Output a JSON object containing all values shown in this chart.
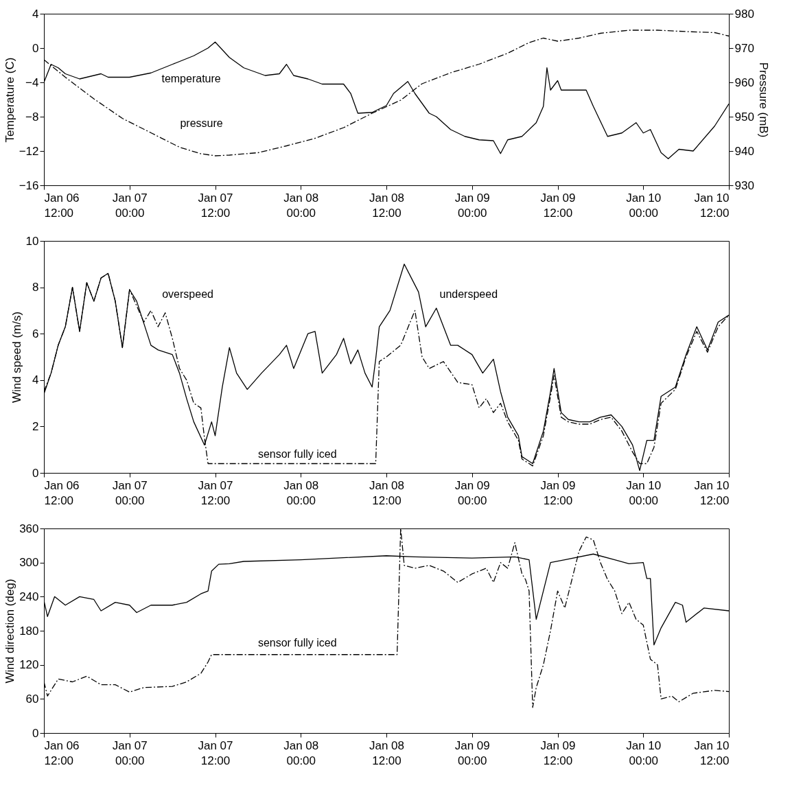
{
  "chart_data": [
    {
      "type": "line",
      "ylabel": "Temperature (C)",
      "y2label": "Pressure (mB)",
      "xlim": [
        "--01-06T12:00",
        "--01-10T12:00"
      ],
      "ylim": [
        -16,
        4
      ],
      "yticks": [
        -16,
        -12,
        -8,
        -4,
        0,
        4
      ],
      "y2lim": [
        930,
        980
      ],
      "y2ticks": [
        930,
        940,
        950,
        960,
        970,
        980
      ],
      "xticks": [
        {
          "value": "--01-06T12:00",
          "label": "Jan 06\n12:00"
        },
        {
          "value": "--01-07T00:00",
          "label": "Jan 07\n00:00"
        },
        {
          "value": "--01-07T12:00",
          "label": "Jan 07\n12:00"
        },
        {
          "value": "--01-08T00:00",
          "label": "Jan 08\n00:00"
        },
        {
          "value": "--01-08T12:00",
          "label": "Jan 08\n12:00"
        },
        {
          "value": "--01-09T00:00",
          "label": "Jan 09\n00:00"
        },
        {
          "value": "--01-09T12:00",
          "label": "Jan 09\n12:00"
        },
        {
          "value": "--01-10T00:00",
          "label": "Jan 10\n00:00"
        },
        {
          "value": "--01-10T12:00",
          "label": "Jan 10\n12:00"
        }
      ],
      "annotations": [
        "temperature",
        "pressure"
      ],
      "series": [
        {
          "color": "#000000",
          "line_style": "solid",
          "x": [
            "--01-06T12:00",
            "--01-06T13:00",
            "--01-06T14:00",
            "--01-06T15:00",
            "--01-06T17:00",
            "--01-06T20:00",
            "--01-06T21:00",
            "--01-07T00:00",
            "--01-07T03:00",
            "--01-07T06:00",
            "--01-07T09:00",
            "--01-07T11:00",
            "--01-07T12:00",
            "--01-07T14:00",
            "--01-07T16:00",
            "--01-07T19:00",
            "--01-07T21:00",
            "--01-07T22:00",
            "--01-07T23:00",
            "--01-08T01:00",
            "--01-08T03:00",
            "--01-08T06:00",
            "--01-08T07:00",
            "--01-08T08:00",
            "--01-08T10:00",
            "--01-08T12:00",
            "--01-08T13:00",
            "--01-08T15:00",
            "--01-08T16:00",
            "--01-08T18:00",
            "--01-08T19:00",
            "--01-08T21:00",
            "--01-08T23:00",
            "--01-09T01:00",
            "--01-09T03:00",
            "--01-09T04:00",
            "--01-09T05:00",
            "--01-09T07:00",
            "--01-09T09:00",
            "--01-09T10:00",
            "--01-09T10:30",
            "--01-09T11:00",
            "--01-09T12:00",
            "--01-09T12:30",
            "--01-09T16:00",
            "--01-09T17:00",
            "--01-09T19:00",
            "--01-09T21:00",
            "--01-09T23:00",
            "--01-10T00:00",
            "--01-10T01:00",
            "--01-10T02:30",
            "--01-10T03:30",
            "--01-10T05:00",
            "--01-10T07:00",
            "--01-10T10:00",
            "--01-10T12:00"
          ],
          "values": [
            -4,
            -1.9,
            -2.3,
            -3.0,
            -3.6,
            -3.0,
            -3.4,
            -3.4,
            -2.9,
            -1.9,
            -0.9,
            0.0,
            0.7,
            -1.1,
            -2.3,
            -3.2,
            -3.0,
            -1.9,
            -3.2,
            -3.6,
            -4.2,
            -4.2,
            -5.3,
            -7.6,
            -7.5,
            -6.7,
            -5.3,
            -3.9,
            -5.3,
            -7.6,
            -8.0,
            -9.5,
            -10.3,
            -10.7,
            -10.8,
            -12.3,
            -10.7,
            -10.3,
            -8.7,
            -6.8,
            -2.3,
            -4.9,
            -3.8,
            -4.9,
            -4.9,
            -6.8,
            -10.3,
            -9.9,
            -8.7,
            -9.9,
            -9.5,
            -12.2,
            -12.9,
            -11.8,
            -12.0,
            -9.1,
            -6.5
          ]
        },
        {
          "color": "#000000",
          "line_style": "dashed",
          "axis": "y2",
          "x": [
            "--01-06T12:00",
            "--01-06T15:00",
            "--01-06T19:00",
            "--01-06T23:00",
            "--01-07T03:00",
            "--01-07T07:00",
            "--01-07T10:00",
            "--01-07T12:00",
            "--01-07T14:00",
            "--01-07T18:00",
            "--01-07T22:00",
            "--01-08T02:00",
            "--01-08T06:00",
            "--01-08T10:00",
            "--01-08T14:00",
            "--01-08T17:00",
            "--01-08T21:00",
            "--01-09T01:00",
            "--01-09T05:00",
            "--01-09T08:00",
            "--01-09T10:00",
            "--01-09T12:00",
            "--01-09T15:00",
            "--01-09T18:00",
            "--01-09T22:00",
            "--01-10T02:00",
            "--01-10T06:00",
            "--01-10T10:00",
            "--01-10T12:00"
          ],
          "values": [
            966.6,
            961.5,
            955.2,
            949.5,
            945.3,
            941.1,
            939.2,
            938.6,
            938.8,
            939.5,
            941.5,
            943.7,
            946.8,
            951,
            954.8,
            959.6,
            962.8,
            965.3,
            968.5,
            971.6,
            972.9,
            972,
            972.9,
            974.3,
            975.2,
            975.2,
            974.8,
            974.5,
            973.5
          ]
        }
      ]
    },
    {
      "type": "line",
      "ylabel": "Wind speed (m/s)",
      "xlim": [
        "--01-06T12:00",
        "--01-10T12:00"
      ],
      "ylim": [
        0,
        10
      ],
      "yticks": [
        0,
        2,
        4,
        6,
        8,
        10
      ],
      "xticks": [
        {
          "value": "--01-06T12:00",
          "label": "Jan 06\n12:00"
        },
        {
          "value": "--01-07T00:00",
          "label": "Jan 07\n00:00"
        },
        {
          "value": "--01-07T12:00",
          "label": "Jan 07\n12:00"
        },
        {
          "value": "--01-08T00:00",
          "label": "Jan 08\n00:00"
        },
        {
          "value": "--01-08T12:00",
          "label": "Jan 08\n12:00"
        },
        {
          "value": "--01-09T00:00",
          "label": "Jan 09\n00:00"
        },
        {
          "value": "--01-09T12:00",
          "label": "Jan 09\n12:00"
        },
        {
          "value": "--01-10T00:00",
          "label": "Jan 10\n00:00"
        },
        {
          "value": "--01-10T12:00",
          "label": "Jan 10\n12:00"
        }
      ],
      "annotations": [
        "overspeed",
        "underspeed",
        "sensor fully iced"
      ],
      "series": [
        {
          "color": "#000000",
          "line_style": "solid",
          "x": [
            "--01-06T12:00",
            "--01-06T13:00",
            "--01-06T14:00",
            "--01-06T15:00",
            "--01-06T16:00",
            "--01-06T17:00",
            "--01-06T18:00",
            "--01-06T19:00",
            "--01-06T20:00",
            "--01-06T21:00",
            "--01-06T22:00",
            "--01-06T23:00",
            "--01-07T00:00",
            "--01-07T01:00",
            "--01-07T03:00",
            "--01-07T04:00",
            "--01-07T06:00",
            "--01-07T07:00",
            "--01-07T08:00",
            "--01-07T09:00",
            "--01-07T10:30",
            "--01-07T11:30",
            "--01-07T12:00",
            "--01-07T13:00",
            "--01-07T14:00",
            "--01-07T15:00",
            "--01-07T16:30",
            "--01-07T18:30",
            "--01-07T21:00",
            "--01-07T22:00",
            "--01-07T23:00",
            "--01-08T01:00",
            "--01-08T02:00",
            "--01-08T03:00",
            "--01-08T05:00",
            "--01-08T06:00",
            "--01-08T07:00",
            "--01-08T08:00",
            "--01-08T09:00",
            "--01-08T10:00",
            "--01-08T10:30",
            "--01-08T11:00",
            "--01-08T12:30",
            "--01-08T14:30",
            "--01-08T15:30",
            "--01-08T16:30",
            "--01-08T17:30",
            "--01-08T19:00",
            "--01-08T21:00",
            "--01-08T22:00",
            "--01-09T00:00",
            "--01-09T01:30",
            "--01-09T03:00",
            "--01-09T04:00",
            "--01-09T05:00",
            "--01-09T06:30",
            "--01-09T07:00",
            "--01-09T08:30",
            "--01-09T10:00",
            "--01-09T11:00",
            "--01-09T11:30",
            "--01-09T12:30",
            "--01-09T13:30",
            "--01-09T15:00",
            "--01-09T16:30",
            "--01-09T18:00",
            "--01-09T19:30",
            "--01-09T21:00",
            "--01-09T22:30",
            "--01-09T23:30",
            "--01-10T00:30",
            "--01-10T01:30",
            "--01-10T02:30",
            "--01-10T04:30",
            "--01-10T06:00",
            "--01-10T07:30",
            "--01-10T09:00",
            "--01-10T10:30",
            "--01-10T12:00"
          ],
          "values": [
            3.4,
            4.3,
            5.5,
            6.3,
            8.0,
            6.1,
            8.2,
            7.4,
            8.4,
            8.6,
            7.4,
            5.4,
            7.9,
            7.4,
            5.5,
            5.3,
            5.1,
            4.3,
            3.2,
            2.2,
            1.2,
            2.2,
            1.6,
            3.7,
            5.4,
            4.3,
            3.6,
            4.3,
            5.1,
            5.5,
            4.5,
            6.0,
            6.1,
            4.3,
            5.1,
            5.8,
            4.7,
            5.3,
            4.3,
            3.7,
            4.9,
            6.3,
            7.0,
            9.0,
            8.4,
            7.8,
            6.3,
            7.1,
            5.5,
            5.5,
            5.1,
            4.3,
            4.9,
            3.5,
            2.4,
            1.6,
            0.7,
            0.4,
            1.8,
            3.5,
            4.5,
            2.6,
            2.3,
            2.2,
            2.2,
            2.4,
            2.5,
            2.0,
            1.2,
            0.1,
            1.4,
            1.4,
            3.3,
            3.7,
            5.1,
            6.3,
            5.3,
            6.5,
            6.8
          ]
        },
        {
          "color": "#000000",
          "line_style": "dashed",
          "x": [
            "--01-06T12:00",
            "--01-06T13:00",
            "--01-06T14:00",
            "--01-06T15:00",
            "--01-06T16:00",
            "--01-06T17:00",
            "--01-06T18:00",
            "--01-06T19:00",
            "--01-06T20:00",
            "--01-06T21:00",
            "--01-06T22:00",
            "--01-06T23:00",
            "--01-07T00:00",
            "--01-07T01:00",
            "--01-07T02:00",
            "--01-07T03:00",
            "--01-07T04:00",
            "--01-07T05:00",
            "--01-07T06:00",
            "--01-07T07:00",
            "--01-07T08:00",
            "--01-07T09:00",
            "--01-07T10:00",
            "--01-07T10:30",
            "--01-07T11:00",
            "--01-08T10:30",
            "--01-08T11:00",
            "--01-08T12:00",
            "--01-08T14:00",
            "--01-08T16:00",
            "--01-08T17:00",
            "--01-08T18:00",
            "--01-08T20:00",
            "--01-08T22:00",
            "--01-09T00:00",
            "--01-09T01:00",
            "--01-09T02:00",
            "--01-09T03:00",
            "--01-09T04:00",
            "--01-09T05:00",
            "--01-09T06:30",
            "--01-09T07:00",
            "--01-09T08:30",
            "--01-09T10:00",
            "--01-09T11:00",
            "--01-09T11:30",
            "--01-09T12:30",
            "--01-09T13:30",
            "--01-09T15:00",
            "--01-09T16:30",
            "--01-09T18:00",
            "--01-09T19:30",
            "--01-09T21:00",
            "--01-09T22:30",
            "--01-09T23:30",
            "--01-10T00:30",
            "--01-10T01:30",
            "--01-10T02:30",
            "--01-10T04:30",
            "--01-10T06:00",
            "--01-10T07:30",
            "--01-10T09:00",
            "--01-10T10:30",
            "--01-10T12:00"
          ],
          "values": [
            3.5,
            4.3,
            5.5,
            6.3,
            8.0,
            6.1,
            8.2,
            7.4,
            8.4,
            8.6,
            7.4,
            5.4,
            7.9,
            7.2,
            6.5,
            7.0,
            6.3,
            6.9,
            5.8,
            4.5,
            4.0,
            3.0,
            2.8,
            1.5,
            0.4,
            0.4,
            4.8,
            5.0,
            5.5,
            7.0,
            5.0,
            4.5,
            4.8,
            3.9,
            3.8,
            2.8,
            3.2,
            2.6,
            3.0,
            2.2,
            1.4,
            0.6,
            0.3,
            1.6,
            3.3,
            4.2,
            2.4,
            2.2,
            2.1,
            2.1,
            2.3,
            2.4,
            1.8,
            0.9,
            0.4,
            0.4,
            1.1,
            3.0,
            3.6,
            5.0,
            6.1,
            5.2,
            6.3,
            6.8
          ]
        }
      ]
    },
    {
      "type": "line",
      "ylabel": "Wind direction (deg)",
      "xlim": [
        "--01-06T12:00",
        "--01-10T12:00"
      ],
      "ylim": [
        0,
        360
      ],
      "yticks": [
        0,
        60,
        120,
        180,
        240,
        300,
        360
      ],
      "xticks": [
        {
          "value": "--01-06T12:00",
          "label": "Jan 06\n12:00"
        },
        {
          "value": "--01-07T00:00",
          "label": "Jan 07\n00:00"
        },
        {
          "value": "--01-07T12:00",
          "label": "Jan 07\n12:00"
        },
        {
          "value": "--01-08T00:00",
          "label": "Jan 08\n00:00"
        },
        {
          "value": "--01-08T12:00",
          "label": "Jan 08\n12:00"
        },
        {
          "value": "--01-09T00:00",
          "label": "Jan 09\n00:00"
        },
        {
          "value": "--01-09T12:00",
          "label": "Jan 09\n12:00"
        },
        {
          "value": "--01-10T00:00",
          "label": "Jan 10\n00:00"
        },
        {
          "value": "--01-10T12:00",
          "label": "Jan 10\n12:00"
        }
      ],
      "annotations": [
        "sensor fully iced"
      ],
      "series": [
        {
          "color": "#000000",
          "line_style": "solid",
          "x": [
            "--01-06T12:00",
            "--01-06T12:30",
            "--01-06T13:30",
            "--01-06T15:00",
            "--01-06T17:00",
            "--01-06T19:00",
            "--01-06T20:00",
            "--01-06T22:00",
            "--01-07T00:00",
            "--01-07T01:00",
            "--01-07T03:00",
            "--01-07T06:00",
            "--01-07T08:00",
            "--01-07T10:00",
            "--01-07T11:00",
            "--01-07T11:30",
            "--01-07T12:30",
            "--01-07T14:00",
            "--01-07T16:00",
            "--01-08T00:00",
            "--01-08T12:00",
            "--01-08T16:00",
            "--01-09T00:00",
            "--01-09T06:00",
            "--01-09T08:00",
            "--01-09T09:00",
            "--01-09T11:00",
            "--01-09T13:00",
            "--01-09T17:00",
            "--01-09T20:00",
            "--01-09T22:00",
            "--01-10T00:00",
            "--01-10T00:30",
            "--01-10T01:00",
            "--01-10T01:30",
            "--01-10T02:30",
            "--01-10T04:30",
            "--01-10T05:30",
            "--01-10T06:00",
            "--01-10T08:30",
            "--01-10T12:00"
          ],
          "values": [
            233,
            205,
            240,
            225,
            240,
            235,
            215,
            230,
            225,
            212,
            225,
            225,
            230,
            245,
            250,
            285,
            297,
            298,
            302,
            305,
            312,
            310,
            308,
            310,
            305,
            200,
            300,
            305,
            315,
            305,
            298,
            300,
            272,
            272,
            155,
            185,
            230,
            225,
            195,
            220,
            215
          ]
        },
        {
          "color": "#000000",
          "line_style": "dashed",
          "x": [
            "--01-06T12:00",
            "--01-06T12:30",
            "--01-06T14:00",
            "--01-06T16:00",
            "--01-06T18:00",
            "--01-06T20:00",
            "--01-06T22:00",
            "--01-07T00:00",
            "--01-07T02:00",
            "--01-07T06:00",
            "--01-07T08:00",
            "--01-07T10:00",
            "--01-07T11:00",
            "--01-07T11:30",
            "--01-08T13:30",
            "--01-08T14:00",
            "--01-08T14:30",
            "--01-08T16:00",
            "--01-08T18:00",
            "--01-08T20:00",
            "--01-08T22:00",
            "--01-09T00:00",
            "--01-09T02:00",
            "--01-09T03:00",
            "--01-09T04:00",
            "--01-09T05:00",
            "--01-09T06:00",
            "--01-09T07:00",
            "--01-09T07:30",
            "--01-09T08:00",
            "--01-09T08:30",
            "--01-09T09:00",
            "--01-09T10:00",
            "--01-09T11:00",
            "--01-09T12:00",
            "--01-09T13:00",
            "--01-09T14:00",
            "--01-09T15:00",
            "--01-09T16:00",
            "--01-09T17:00",
            "--01-09T18:00",
            "--01-09T19:00",
            "--01-09T20:00",
            "--01-09T21:00",
            "--01-09T22:00",
            "--01-09T23:00",
            "--01-10T00:00",
            "--01-10T01:00",
            "--01-10T02:00",
            "--01-10T02:30",
            "--01-10T04:00",
            "--01-10T05:00",
            "--01-10T07:00",
            "--01-10T10:00",
            "--01-10T12:00"
          ],
          "values": [
            90,
            65,
            95,
            90,
            100,
            85,
            85,
            72,
            80,
            82,
            90,
            105,
            125,
            138,
            138,
            360,
            295,
            290,
            295,
            285,
            265,
            280,
            290,
            265,
            300,
            290,
            335,
            280,
            270,
            250,
            45,
            80,
            120,
            180,
            250,
            220,
            270,
            320,
            345,
            340,
            300,
            270,
            250,
            210,
            230,
            200,
            190,
            130,
            120,
            60,
            65,
            55,
            70,
            75,
            73
          ]
        }
      ]
    }
  ]
}
